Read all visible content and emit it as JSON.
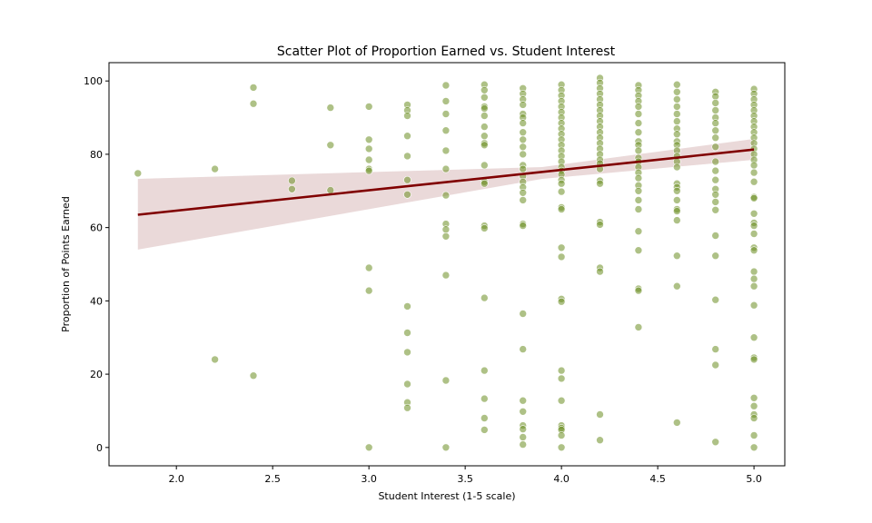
{
  "chart_data": {
    "type": "scatter",
    "title": "Scatter Plot of Proportion Earned vs. Student Interest",
    "xlabel": "Student Interest (1-5 scale)",
    "ylabel": "Proportion of Points Earned",
    "xlim": [
      1.65,
      5.16
    ],
    "ylim": [
      -5,
      105
    ],
    "xticks": [
      2.0,
      2.5,
      3.0,
      3.5,
      4.0,
      4.5,
      5.0
    ],
    "xtick_labels": [
      "2.0",
      "2.5",
      "3.0",
      "3.5",
      "4.0",
      "4.5",
      "5.0"
    ],
    "yticks": [
      0,
      20,
      40,
      60,
      80,
      100
    ],
    "ytick_labels": [
      "0",
      "20",
      "40",
      "60",
      "80",
      "100"
    ],
    "grid": false,
    "point_color": "#6b8e23",
    "line_color": "#800000",
    "band_color": "#e6d2d2",
    "regression": {
      "x": [
        1.8,
        5.0
      ],
      "y": [
        63.5,
        81.3
      ],
      "ci_low": [
        54.0,
        78.5
      ],
      "ci_high": [
        73.3,
        84.2
      ],
      "ci_mid": {
        "x": 3.9,
        "low": 73.3,
        "high": 76.5
      }
    },
    "points": [
      [
        1.8,
        74.8
      ],
      [
        2.2,
        76.0
      ],
      [
        2.2,
        24.0
      ],
      [
        2.4,
        98.2
      ],
      [
        2.4,
        93.8
      ],
      [
        2.4,
        19.6
      ],
      [
        2.6,
        72.8
      ],
      [
        2.6,
        70.5
      ],
      [
        2.8,
        92.7
      ],
      [
        2.8,
        82.5
      ],
      [
        2.8,
        70.2
      ],
      [
        3.0,
        93.0
      ],
      [
        3.0,
        84.0
      ],
      [
        3.0,
        81.5
      ],
      [
        3.0,
        78.5
      ],
      [
        3.0,
        76.0
      ],
      [
        3.0,
        75.5
      ],
      [
        3.0,
        49.0
      ],
      [
        3.0,
        42.8
      ],
      [
        3.0,
        0.0
      ],
      [
        3.2,
        93.5
      ],
      [
        3.2,
        92.0
      ],
      [
        3.2,
        90.5
      ],
      [
        3.2,
        85.0
      ],
      [
        3.2,
        79.5
      ],
      [
        3.2,
        73.0
      ],
      [
        3.2,
        69.0
      ],
      [
        3.2,
        38.5
      ],
      [
        3.2,
        31.3
      ],
      [
        3.2,
        26.0
      ],
      [
        3.2,
        17.3
      ],
      [
        3.2,
        12.3
      ],
      [
        3.2,
        10.8
      ],
      [
        3.4,
        98.8
      ],
      [
        3.4,
        94.5
      ],
      [
        3.4,
        91.0
      ],
      [
        3.4,
        86.5
      ],
      [
        3.4,
        81.0
      ],
      [
        3.4,
        76.0
      ],
      [
        3.4,
        68.8
      ],
      [
        3.4,
        61.0
      ],
      [
        3.4,
        59.5
      ],
      [
        3.4,
        57.6
      ],
      [
        3.4,
        47.0
      ],
      [
        3.4,
        18.3
      ],
      [
        3.4,
        0.0
      ],
      [
        3.6,
        99.0
      ],
      [
        3.6,
        97.5
      ],
      [
        3.6,
        95.5
      ],
      [
        3.6,
        93.0
      ],
      [
        3.6,
        92.5
      ],
      [
        3.6,
        90.5
      ],
      [
        3.6,
        87.5
      ],
      [
        3.6,
        85.0
      ],
      [
        3.6,
        83.0
      ],
      [
        3.6,
        82.5
      ],
      [
        3.6,
        77.0
      ],
      [
        3.6,
        72.5
      ],
      [
        3.6,
        72.0
      ],
      [
        3.6,
        60.5
      ],
      [
        3.6,
        59.8
      ],
      [
        3.6,
        40.8
      ],
      [
        3.6,
        21.0
      ],
      [
        3.6,
        13.3
      ],
      [
        3.6,
        8.0
      ],
      [
        3.6,
        4.8
      ],
      [
        3.8,
        98.0
      ],
      [
        3.8,
        96.5
      ],
      [
        3.8,
        95.0
      ],
      [
        3.8,
        93.5
      ],
      [
        3.8,
        91.0
      ],
      [
        3.8,
        90.0
      ],
      [
        3.8,
        88.5
      ],
      [
        3.8,
        86.0
      ],
      [
        3.8,
        84.0
      ],
      [
        3.8,
        82.0
      ],
      [
        3.8,
        80.0
      ],
      [
        3.8,
        77.0
      ],
      [
        3.8,
        76.0
      ],
      [
        3.8,
        74.0
      ],
      [
        3.8,
        72.5
      ],
      [
        3.8,
        71.0
      ],
      [
        3.8,
        69.5
      ],
      [
        3.8,
        67.5
      ],
      [
        3.8,
        61.0
      ],
      [
        3.8,
        60.5
      ],
      [
        3.8,
        36.5
      ],
      [
        3.8,
        26.8
      ],
      [
        3.8,
        12.8
      ],
      [
        3.8,
        9.8
      ],
      [
        3.8,
        6.0
      ],
      [
        3.8,
        5.0
      ],
      [
        3.8,
        2.8
      ],
      [
        3.8,
        0.8
      ],
      [
        4.0,
        99.0
      ],
      [
        4.0,
        97.5
      ],
      [
        4.0,
        96.0
      ],
      [
        4.0,
        94.5
      ],
      [
        4.0,
        93.0
      ],
      [
        4.0,
        91.5
      ],
      [
        4.0,
        90.0
      ],
      [
        4.0,
        88.5
      ],
      [
        4.0,
        87.0
      ],
      [
        4.0,
        85.5
      ],
      [
        4.0,
        84.0
      ],
      [
        4.0,
        82.5
      ],
      [
        4.0,
        81.0
      ],
      [
        4.0,
        79.5
      ],
      [
        4.0,
        78.0
      ],
      [
        4.0,
        76.5
      ],
      [
        4.0,
        75.5
      ],
      [
        4.0,
        74.5
      ],
      [
        4.0,
        73.0
      ],
      [
        4.0,
        72.0
      ],
      [
        4.0,
        69.8
      ],
      [
        4.0,
        65.5
      ],
      [
        4.0,
        65.0
      ],
      [
        4.0,
        54.5
      ],
      [
        4.0,
        52.0
      ],
      [
        4.0,
        40.5
      ],
      [
        4.0,
        39.8
      ],
      [
        4.0,
        21.0
      ],
      [
        4.0,
        18.8
      ],
      [
        4.0,
        12.8
      ],
      [
        4.0,
        6.0
      ],
      [
        4.0,
        5.3
      ],
      [
        4.0,
        4.8
      ],
      [
        4.0,
        3.3
      ],
      [
        4.0,
        0.0
      ],
      [
        4.2,
        100.8
      ],
      [
        4.2,
        99.5
      ],
      [
        4.2,
        98.0
      ],
      [
        4.2,
        96.5
      ],
      [
        4.2,
        95.0
      ],
      [
        4.2,
        93.5
      ],
      [
        4.2,
        92.0
      ],
      [
        4.2,
        90.5
      ],
      [
        4.2,
        89.0
      ],
      [
        4.2,
        87.5
      ],
      [
        4.2,
        86.0
      ],
      [
        4.2,
        84.5
      ],
      [
        4.2,
        83.0
      ],
      [
        4.2,
        81.5
      ],
      [
        4.2,
        80.0
      ],
      [
        4.2,
        78.5
      ],
      [
        4.2,
        77.5
      ],
      [
        4.2,
        76.0
      ],
      [
        4.2,
        72.8
      ],
      [
        4.2,
        72.0
      ],
      [
        4.2,
        61.5
      ],
      [
        4.2,
        60.8
      ],
      [
        4.2,
        49.0
      ],
      [
        4.2,
        48.0
      ],
      [
        4.2,
        9.0
      ],
      [
        4.2,
        2.0
      ],
      [
        4.4,
        98.8
      ],
      [
        4.4,
        97.5
      ],
      [
        4.4,
        96.0
      ],
      [
        4.4,
        94.5
      ],
      [
        4.4,
        93.0
      ],
      [
        4.4,
        91.0
      ],
      [
        4.4,
        88.5
      ],
      [
        4.4,
        86.0
      ],
      [
        4.4,
        83.5
      ],
      [
        4.4,
        82.5
      ],
      [
        4.4,
        81.0
      ],
      [
        4.4,
        79.0
      ],
      [
        4.4,
        78.0
      ],
      [
        4.4,
        76.5
      ],
      [
        4.4,
        75.0
      ],
      [
        4.4,
        73.5
      ],
      [
        4.4,
        71.5
      ],
      [
        4.4,
        70.0
      ],
      [
        4.4,
        67.5
      ],
      [
        4.4,
        65.0
      ],
      [
        4.4,
        59.0
      ],
      [
        4.4,
        53.8
      ],
      [
        4.4,
        43.3
      ],
      [
        4.4,
        42.8
      ],
      [
        4.4,
        32.8
      ],
      [
        4.6,
        99.0
      ],
      [
        4.6,
        97.0
      ],
      [
        4.6,
        95.0
      ],
      [
        4.6,
        93.0
      ],
      [
        4.6,
        91.0
      ],
      [
        4.6,
        89.0
      ],
      [
        4.6,
        87.0
      ],
      [
        4.6,
        85.5
      ],
      [
        4.6,
        83.5
      ],
      [
        4.6,
        82.5
      ],
      [
        4.6,
        81.0
      ],
      [
        4.6,
        79.5
      ],
      [
        4.6,
        78.0
      ],
      [
        4.6,
        76.5
      ],
      [
        4.6,
        72.0
      ],
      [
        4.6,
        71.0
      ],
      [
        4.6,
        70.0
      ],
      [
        4.6,
        67.5
      ],
      [
        4.6,
        65.0
      ],
      [
        4.6,
        64.5
      ],
      [
        4.6,
        62.0
      ],
      [
        4.6,
        52.3
      ],
      [
        4.6,
        44.0
      ],
      [
        4.6,
        6.8
      ],
      [
        4.8,
        97.0
      ],
      [
        4.8,
        95.8
      ],
      [
        4.8,
        94.0
      ],
      [
        4.8,
        92.0
      ],
      [
        4.8,
        90.0
      ],
      [
        4.8,
        88.5
      ],
      [
        4.8,
        86.5
      ],
      [
        4.8,
        84.5
      ],
      [
        4.8,
        82.0
      ],
      [
        4.8,
        78.0
      ],
      [
        4.8,
        75.5
      ],
      [
        4.8,
        73.0
      ],
      [
        4.8,
        70.5
      ],
      [
        4.8,
        69.0
      ],
      [
        4.8,
        67.0
      ],
      [
        4.8,
        64.8
      ],
      [
        4.8,
        57.8
      ],
      [
        4.8,
        52.3
      ],
      [
        4.8,
        40.3
      ],
      [
        4.8,
        26.8
      ],
      [
        4.8,
        22.5
      ],
      [
        4.8,
        1.5
      ],
      [
        5.0,
        97.8
      ],
      [
        5.0,
        96.5
      ],
      [
        5.0,
        95.0
      ],
      [
        5.0,
        93.5
      ],
      [
        5.0,
        92.0
      ],
      [
        5.0,
        90.5
      ],
      [
        5.0,
        89.0
      ],
      [
        5.0,
        87.5
      ],
      [
        5.0,
        86.0
      ],
      [
        5.0,
        84.5
      ],
      [
        5.0,
        83.0
      ],
      [
        5.0,
        81.5
      ],
      [
        5.0,
        80.0
      ],
      [
        5.0,
        78.5
      ],
      [
        5.0,
        77.0
      ],
      [
        5.0,
        75.0
      ],
      [
        5.0,
        72.5
      ],
      [
        5.0,
        68.3
      ],
      [
        5.0,
        68.0
      ],
      [
        5.0,
        63.8
      ],
      [
        5.0,
        61.3
      ],
      [
        5.0,
        60.5
      ],
      [
        5.0,
        58.3
      ],
      [
        5.0,
        54.5
      ],
      [
        5.0,
        53.8
      ],
      [
        5.0,
        48.0
      ],
      [
        5.0,
        46.0
      ],
      [
        5.0,
        44.0
      ],
      [
        5.0,
        38.8
      ],
      [
        5.0,
        30.0
      ],
      [
        5.0,
        24.5
      ],
      [
        5.0,
        24.0
      ],
      [
        5.0,
        13.5
      ],
      [
        5.0,
        11.3
      ],
      [
        5.0,
        9.0
      ],
      [
        5.0,
        8.0
      ],
      [
        5.0,
        3.3
      ],
      [
        5.0,
        0.0
      ]
    ]
  }
}
